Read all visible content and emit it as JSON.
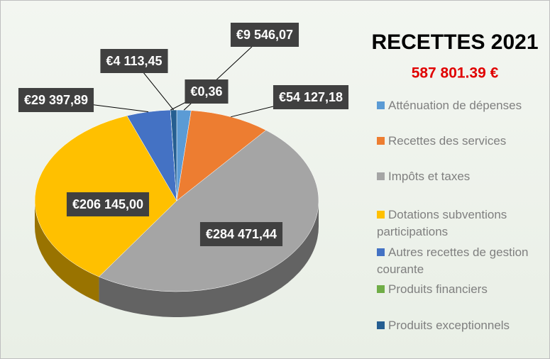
{
  "chart_data": {
    "type": "pie",
    "title": "RECETTES 2021",
    "subtitle": "587 801.39 €",
    "categories": [
      "Atténuation de dépenses",
      "Recettes des services",
      "Impôts et taxes",
      "Dotations subventions participations",
      "Autres recettes de gestion courante",
      "Produits financiers",
      "Produits exceptionnels"
    ],
    "values": [
      9546.07,
      54127.18,
      284471.44,
      206145.0,
      29397.89,
      0.36,
      4113.45
    ],
    "value_labels": [
      "€9 546,07",
      "€54 127,18",
      "€284 471,44",
      "€206 145,00",
      "€29 397,89",
      "€0,36",
      "€4 113,45"
    ],
    "colors": [
      "#5b9bd5",
      "#ed7d31",
      "#a5a5a5",
      "#ffc000",
      "#4472c4",
      "#70ad47",
      "#255e91"
    ],
    "legend": "right"
  }
}
